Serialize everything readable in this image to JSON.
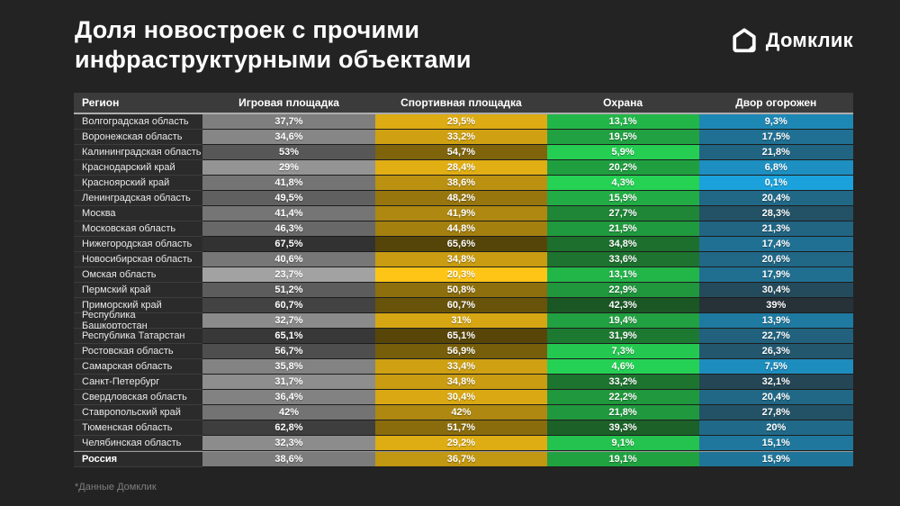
{
  "title_line1": "Доля новостроек с прочими",
  "title_line2": "инфраструктурными объектами",
  "logo": {
    "text": "Домклик",
    "icon": "domclick-house-icon",
    "color": "#ffffff"
  },
  "footnote": "*Данные Домклик",
  "table": {
    "columns": [
      "Регион",
      "Игровая площадка",
      "Спортивная площадка",
      "Охрана",
      "Двор огорожен"
    ],
    "color_scales": [
      {
        "name": "playground-gray",
        "low": "#a2a2a2",
        "high": "#323232",
        "domain": [
          23.7,
          67.5
        ]
      },
      {
        "name": "sports-yellow",
        "low": "#ffc516",
        "high": "#564509",
        "domain": [
          20.3,
          65.6
        ]
      },
      {
        "name": "security-green",
        "low": "#25d254",
        "high": "#1a5724",
        "domain": [
          4.3,
          42.3
        ]
      },
      {
        "name": "fence-blue",
        "low": "#1ba2dc",
        "high": "#263238",
        "domain": [
          0.1,
          39.0
        ]
      }
    ],
    "rows": [
      {
        "region": "Волгоградская область",
        "cells": [
          {
            "display": "37,7%",
            "value": 37.7
          },
          {
            "display": "29,5%",
            "value": 29.5
          },
          {
            "display": "13,1%",
            "value": 13.1
          },
          {
            "display": "9,3%",
            "value": 9.3
          }
        ]
      },
      {
        "region": "Воронежская область",
        "cells": [
          {
            "display": "34,6%",
            "value": 34.6
          },
          {
            "display": "33,2%",
            "value": 33.2
          },
          {
            "display": "19,5%",
            "value": 19.5
          },
          {
            "display": "17,5%",
            "value": 17.5
          }
        ]
      },
      {
        "region": "Калининградская область",
        "cells": [
          {
            "display": "53%",
            "value": 53
          },
          {
            "display": "54,7%",
            "value": 54.7
          },
          {
            "display": "5,9%",
            "value": 5.9
          },
          {
            "display": "21,8%",
            "value": 21.8
          }
        ]
      },
      {
        "region": "Краснодарский край",
        "cells": [
          {
            "display": "29%",
            "value": 29
          },
          {
            "display": "28,4%",
            "value": 28.4
          },
          {
            "display": "20,2%",
            "value": 20.2
          },
          {
            "display": "6,8%",
            "value": 6.8
          }
        ]
      },
      {
        "region": "Красноярский край",
        "cells": [
          {
            "display": "41,8%",
            "value": 41.8
          },
          {
            "display": "38,6%",
            "value": 38.6
          },
          {
            "display": "4,3%",
            "value": 4.3
          },
          {
            "display": "0,1%",
            "value": 0.1
          }
        ]
      },
      {
        "region": "Ленинградская область",
        "cells": [
          {
            "display": "49,5%",
            "value": 49.5
          },
          {
            "display": "48,2%",
            "value": 48.2
          },
          {
            "display": "15,9%",
            "value": 15.9
          },
          {
            "display": "20,4%",
            "value": 20.4
          }
        ]
      },
      {
        "region": "Москва",
        "cells": [
          {
            "display": "41,4%",
            "value": 41.4
          },
          {
            "display": "41,9%",
            "value": 41.9
          },
          {
            "display": "27,7%",
            "value": 27.7
          },
          {
            "display": "28,3%",
            "value": 28.3
          }
        ]
      },
      {
        "region": "Московская область",
        "cells": [
          {
            "display": "46,3%",
            "value": 46.3
          },
          {
            "display": "44,8%",
            "value": 44.8
          },
          {
            "display": "21,5%",
            "value": 21.5
          },
          {
            "display": "21,3%",
            "value": 21.3
          }
        ]
      },
      {
        "region": "Нижегородская область",
        "cells": [
          {
            "display": "67,5%",
            "value": 67.5
          },
          {
            "display": "65,6%",
            "value": 65.6
          },
          {
            "display": "34,8%",
            "value": 34.8
          },
          {
            "display": "17,4%",
            "value": 17.4
          }
        ]
      },
      {
        "region": "Новосибирская область",
        "cells": [
          {
            "display": "40,6%",
            "value": 40.6
          },
          {
            "display": "34,8%",
            "value": 34.8
          },
          {
            "display": "33,6%",
            "value": 33.6
          },
          {
            "display": "20,6%",
            "value": 20.6
          }
        ]
      },
      {
        "region": "Омская область",
        "cells": [
          {
            "display": "23,7%",
            "value": 23.7
          },
          {
            "display": "20,3%",
            "value": 20.3
          },
          {
            "display": "13,1%",
            "value": 13.1
          },
          {
            "display": "17,9%",
            "value": 17.9
          }
        ]
      },
      {
        "region": "Пермский край",
        "cells": [
          {
            "display": "51,2%",
            "value": 51.2
          },
          {
            "display": "50,8%",
            "value": 50.8
          },
          {
            "display": "22,9%",
            "value": 22.9
          },
          {
            "display": "30,4%",
            "value": 30.4
          }
        ]
      },
      {
        "region": "Приморский край",
        "cells": [
          {
            "display": "60,7%",
            "value": 60.7
          },
          {
            "display": "60,7%",
            "value": 60.7
          },
          {
            "display": "42,3%",
            "value": 42.3
          },
          {
            "display": "39%",
            "value": 39
          }
        ]
      },
      {
        "region": "Республика Башкортостан",
        "cells": [
          {
            "display": "32,7%",
            "value": 32.7
          },
          {
            "display": "31%",
            "value": 31
          },
          {
            "display": "19,4%",
            "value": 19.4
          },
          {
            "display": "13,9%",
            "value": 13.9
          }
        ]
      },
      {
        "region": "Республика Татарстан",
        "cells": [
          {
            "display": "65,1%",
            "value": 65.1
          },
          {
            "display": "65,1%",
            "value": 65.1
          },
          {
            "display": "31,9%",
            "value": 31.9
          },
          {
            "display": "22,7%",
            "value": 22.7
          }
        ]
      },
      {
        "region": "Ростовская область",
        "cells": [
          {
            "display": "56,7%",
            "value": 56.7
          },
          {
            "display": "56,9%",
            "value": 56.9
          },
          {
            "display": "7,3%",
            "value": 7.3
          },
          {
            "display": "26,3%",
            "value": 26.3
          }
        ]
      },
      {
        "region": "Самарская область",
        "cells": [
          {
            "display": "35,8%",
            "value": 35.8
          },
          {
            "display": "33,4%",
            "value": 33.4
          },
          {
            "display": "4,6%",
            "value": 4.6
          },
          {
            "display": "7,5%",
            "value": 7.5
          }
        ]
      },
      {
        "region": "Санкт-Петербург",
        "cells": [
          {
            "display": "31,7%",
            "value": 31.7
          },
          {
            "display": "34,8%",
            "value": 34.8
          },
          {
            "display": "33,2%",
            "value": 33.2
          },
          {
            "display": "32,1%",
            "value": 32.1
          }
        ]
      },
      {
        "region": "Свердловская область",
        "cells": [
          {
            "display": "36,4%",
            "value": 36.4
          },
          {
            "display": "30,4%",
            "value": 30.4
          },
          {
            "display": "22,2%",
            "value": 22.2
          },
          {
            "display": "20,4%",
            "value": 20.4
          }
        ]
      },
      {
        "region": "Ставропольский край",
        "cells": [
          {
            "display": "42%",
            "value": 42
          },
          {
            "display": "42%",
            "value": 42
          },
          {
            "display": "21,8%",
            "value": 21.8
          },
          {
            "display": "27,8%",
            "value": 27.8
          }
        ]
      },
      {
        "region": "Тюменская область",
        "cells": [
          {
            "display": "62,8%",
            "value": 62.8
          },
          {
            "display": "51,7%",
            "value": 51.7
          },
          {
            "display": "39,3%",
            "value": 39.3
          },
          {
            "display": "20%",
            "value": 20
          }
        ]
      },
      {
        "region": "Челябинская область",
        "cells": [
          {
            "display": "32,3%",
            "value": 32.3
          },
          {
            "display": "29,2%",
            "value": 29.2
          },
          {
            "display": "9,1%",
            "value": 9.1
          },
          {
            "display": "15,1%",
            "value": 15.1
          }
        ]
      },
      {
        "region": "Россия",
        "is_total": true,
        "cells": [
          {
            "display": "38,6%",
            "value": 38.6
          },
          {
            "display": "36,7%",
            "value": 36.7
          },
          {
            "display": "19,1%",
            "value": 19.1
          },
          {
            "display": "15,9%",
            "value": 15.9
          }
        ]
      }
    ]
  },
  "chart_data": {
    "type": "heatmap",
    "title": "Доля новостроек с прочими инфраструктурными объектами",
    "unit": "%",
    "columns": [
      "Игровая площадка",
      "Спортивная площадка",
      "Охрана",
      "Двор огорожен"
    ],
    "rows": [
      "Волгоградская область",
      "Воронежская область",
      "Калининградская область",
      "Краснодарский край",
      "Красноярский край",
      "Ленинградская область",
      "Москва",
      "Московская область",
      "Нижегородская область",
      "Новосибирская область",
      "Омская область",
      "Пермский край",
      "Приморский край",
      "Республика Башкортостан",
      "Республика Татарстан",
      "Ростовская область",
      "Самарская область",
      "Санкт-Петербург",
      "Свердловская область",
      "Ставропольский край",
      "Тюменская область",
      "Челябинская область",
      "Россия"
    ],
    "values": [
      [
        37.7,
        29.5,
        13.1,
        9.3
      ],
      [
        34.6,
        33.2,
        19.5,
        17.5
      ],
      [
        53.0,
        54.7,
        5.9,
        21.8
      ],
      [
        29.0,
        28.4,
        20.2,
        6.8
      ],
      [
        41.8,
        38.6,
        4.3,
        0.1
      ],
      [
        49.5,
        48.2,
        15.9,
        20.4
      ],
      [
        41.4,
        41.9,
        27.7,
        28.3
      ],
      [
        46.3,
        44.8,
        21.5,
        21.3
      ],
      [
        67.5,
        65.6,
        34.8,
        17.4
      ],
      [
        40.6,
        34.8,
        33.6,
        20.6
      ],
      [
        23.7,
        20.3,
        13.1,
        17.9
      ],
      [
        51.2,
        50.8,
        22.9,
        30.4
      ],
      [
        60.7,
        60.7,
        42.3,
        39.0
      ],
      [
        32.7,
        31.0,
        19.4,
        13.9
      ],
      [
        65.1,
        65.1,
        31.9,
        22.7
      ],
      [
        56.7,
        56.9,
        7.3,
        26.3
      ],
      [
        35.8,
        33.4,
        4.6,
        7.5
      ],
      [
        31.7,
        34.8,
        33.2,
        32.1
      ],
      [
        36.4,
        30.4,
        22.2,
        20.4
      ],
      [
        42.0,
        42.0,
        21.8,
        27.8
      ],
      [
        62.8,
        51.7,
        39.3,
        20.0
      ],
      [
        32.3,
        29.2,
        9.1,
        15.1
      ],
      [
        38.6,
        36.7,
        19.1,
        15.9
      ]
    ],
    "color_note": "higher value = darker cell; columns colored gray / yellow / green / blue",
    "source_note": "*Данные Домклик"
  }
}
